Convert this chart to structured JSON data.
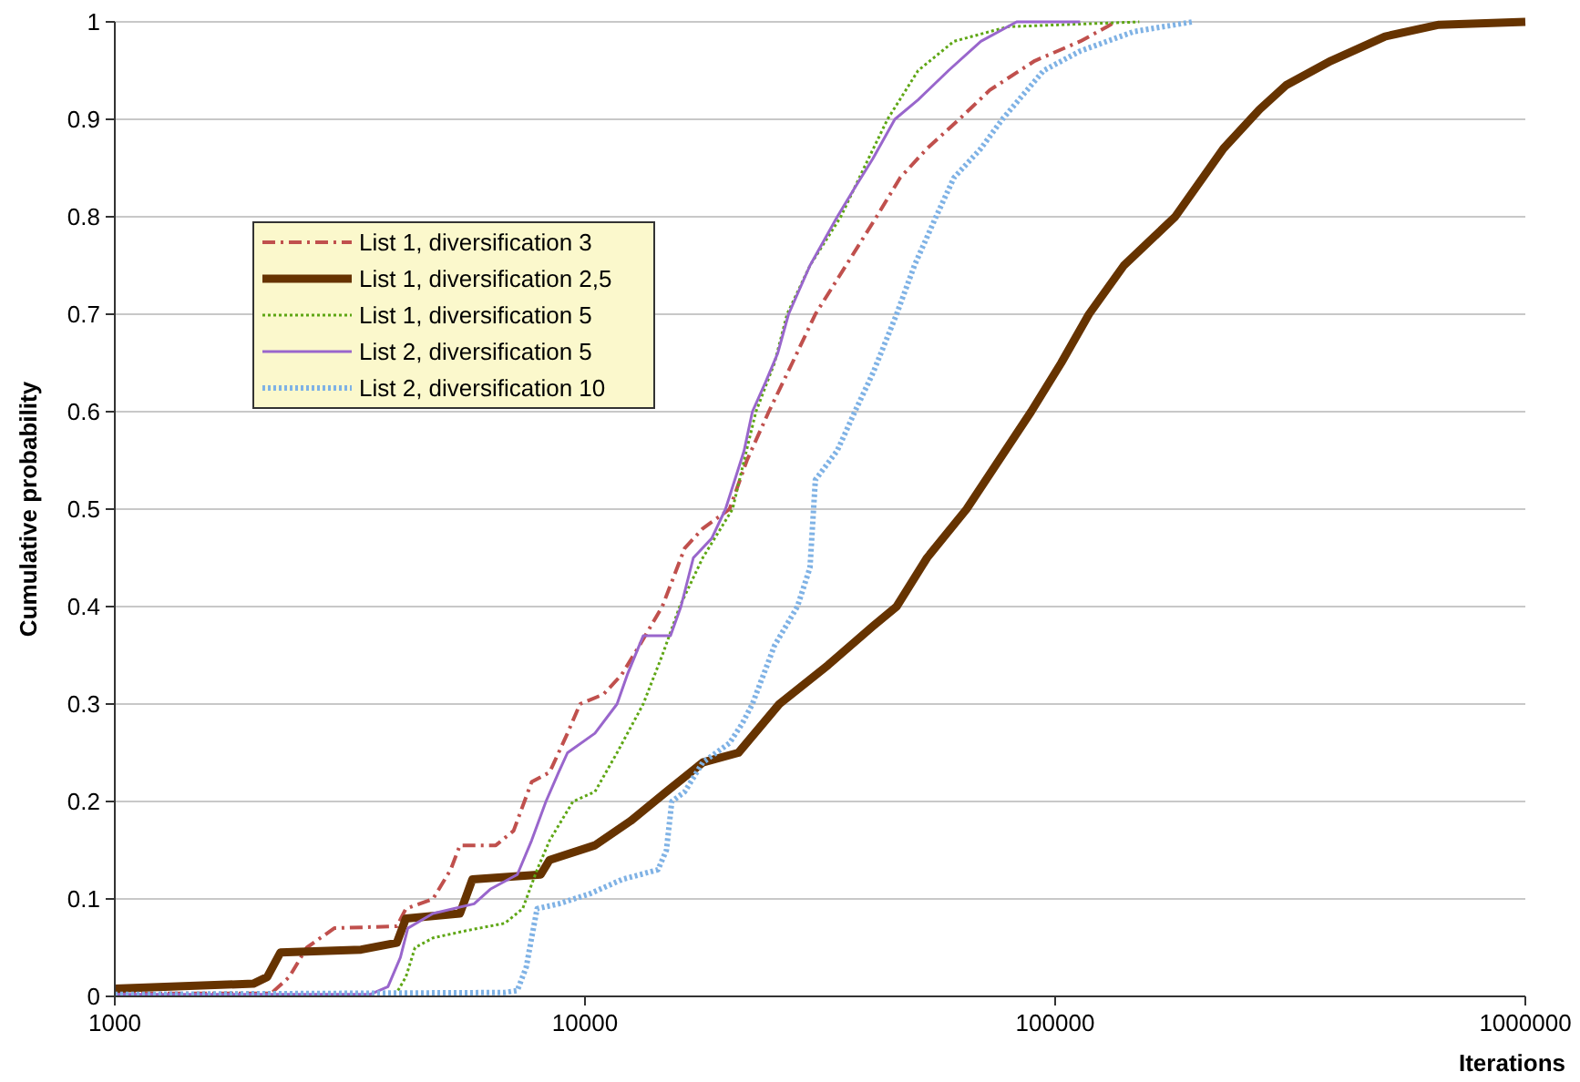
{
  "chart_data": {
    "type": "line",
    "xlabel": "Iterations",
    "ylabel": "Cumulative probability",
    "log": "x",
    "xlim": [
      1000,
      1000000
    ],
    "xticks": [
      1000,
      10000,
      100000,
      1000000
    ],
    "ylim": [
      0,
      1
    ],
    "yticks": [
      0,
      0.1,
      0.2,
      0.3,
      0.4,
      0.5,
      0.6,
      0.7,
      0.8,
      0.9,
      1
    ],
    "grid": "y",
    "legend": "top left",
    "marker": "none",
    "series": [
      {
        "name": "List 1, diversification 3",
        "color": "#c0504d",
        "line_style": "dashed",
        "x": [
          1000,
          2150,
          2350,
          2560,
          2930,
          3980,
          4160,
          4750,
          5180,
          5420,
          6460,
          7050,
          7700,
          8410,
          9180,
          9760,
          10950,
          11960,
          13060,
          14600,
          16300,
          17800,
          20300,
          22100,
          24600,
          27600,
          30900,
          35900,
          41700,
          46800,
          53400,
          62500,
          72600,
          90500,
          113000,
          129000,
          134000
        ],
        "values": [
          0.003,
          0.003,
          0.02,
          0.05,
          0.07,
          0.072,
          0.09,
          0.1,
          0.13,
          0.155,
          0.155,
          0.17,
          0.22,
          0.23,
          0.27,
          0.3,
          0.31,
          0.33,
          0.36,
          0.4,
          0.46,
          0.48,
          0.5,
          0.55,
          0.6,
          0.65,
          0.7,
          0.75,
          0.8,
          0.84,
          0.87,
          0.9,
          0.93,
          0.96,
          0.98,
          0.995,
          1
        ]
      },
      {
        "name": "List 1, diversification 2,5",
        "color": "#663300",
        "line_style": "solid",
        "x": [
          1000,
          1970,
          2110,
          2250,
          3340,
          3980,
          4160,
          5420,
          5760,
          8050,
          8410,
          10500,
          12500,
          14900,
          17800,
          21200,
          25900,
          32900,
          41000,
          46000,
          53400,
          64800,
          75900,
          88900,
          103000,
          118000,
          140000,
          180000,
          228000,
          272000,
          310000,
          386000,
          503000,
          655000,
          1000000
        ],
        "values": [
          0.008,
          0.013,
          0.02,
          0.045,
          0.048,
          0.055,
          0.08,
          0.085,
          0.12,
          0.125,
          0.14,
          0.155,
          0.18,
          0.21,
          0.24,
          0.25,
          0.3,
          0.34,
          0.38,
          0.4,
          0.45,
          0.5,
          0.55,
          0.6,
          0.65,
          0.7,
          0.75,
          0.8,
          0.87,
          0.91,
          0.935,
          0.96,
          0.985,
          0.997,
          1
        ]
      },
      {
        "name": "List 1, diversification 5",
        "color": "#5ea614",
        "line_style": "dotted",
        "x": [
          1000,
          3980,
          4160,
          4350,
          4750,
          5660,
          6750,
          7370,
          7910,
          8410,
          9430,
          10500,
          11700,
          13300,
          14600,
          15900,
          17800,
          20600,
          21800,
          23100,
          25300,
          26900,
          30100,
          35000,
          39200,
          44000,
          51100,
          60900,
          79300,
          151000
        ],
        "values": [
          0.003,
          0.004,
          0.02,
          0.05,
          0.06,
          0.068,
          0.075,
          0.09,
          0.13,
          0.16,
          0.2,
          0.21,
          0.25,
          0.3,
          0.35,
          0.4,
          0.45,
          0.5,
          0.55,
          0.6,
          0.65,
          0.7,
          0.75,
          0.8,
          0.85,
          0.9,
          0.95,
          0.98,
          0.995,
          1
        ]
      },
      {
        "name": "List 2, diversification 5",
        "color": "#9966cc",
        "line_style": "solid",
        "x": [
          1000,
          3490,
          3810,
          4050,
          4200,
          4750,
          5810,
          6290,
          7180,
          7700,
          8260,
          8790,
          9180,
          10500,
          11700,
          12300,
          13300,
          15200,
          16000,
          17000,
          18600,
          19900,
          21800,
          22700,
          24200,
          25700,
          27100,
          30100,
          34400,
          37500,
          41000,
          45600,
          51100,
          59300,
          69500,
          82800,
          113000
        ],
        "values": [
          0.002,
          0.002,
          0.01,
          0.04,
          0.07,
          0.085,
          0.095,
          0.11,
          0.125,
          0.16,
          0.2,
          0.23,
          0.25,
          0.27,
          0.3,
          0.33,
          0.37,
          0.37,
          0.4,
          0.45,
          0.47,
          0.5,
          0.56,
          0.6,
          0.63,
          0.66,
          0.7,
          0.75,
          0.8,
          0.83,
          0.86,
          0.9,
          0.92,
          0.95,
          0.98,
          1,
          1
        ]
      },
      {
        "name": "List 2, diversification 10",
        "color": "#7fb2e5",
        "line_style": "dotted",
        "x": [
          1000,
          6750,
          7180,
          7500,
          7700,
          7910,
          8790,
          10200,
          12000,
          14300,
          14900,
          15300,
          16300,
          17800,
          20300,
          21600,
          22700,
          25300,
          28300,
          30100,
          30900,
          34400,
          37500,
          41000,
          46000,
          50200,
          55800,
          60900,
          69500,
          77200,
          94500,
          113000,
          147000,
          196000
        ],
        "values": [
          0.002,
          0.004,
          0.006,
          0.03,
          0.06,
          0.09,
          0.095,
          0.105,
          0.12,
          0.13,
          0.15,
          0.2,
          0.21,
          0.24,
          0.26,
          0.28,
          0.3,
          0.36,
          0.4,
          0.44,
          0.53,
          0.56,
          0.6,
          0.64,
          0.7,
          0.75,
          0.8,
          0.84,
          0.87,
          0.9,
          0.95,
          0.97,
          0.99,
          1
        ]
      }
    ]
  }
}
